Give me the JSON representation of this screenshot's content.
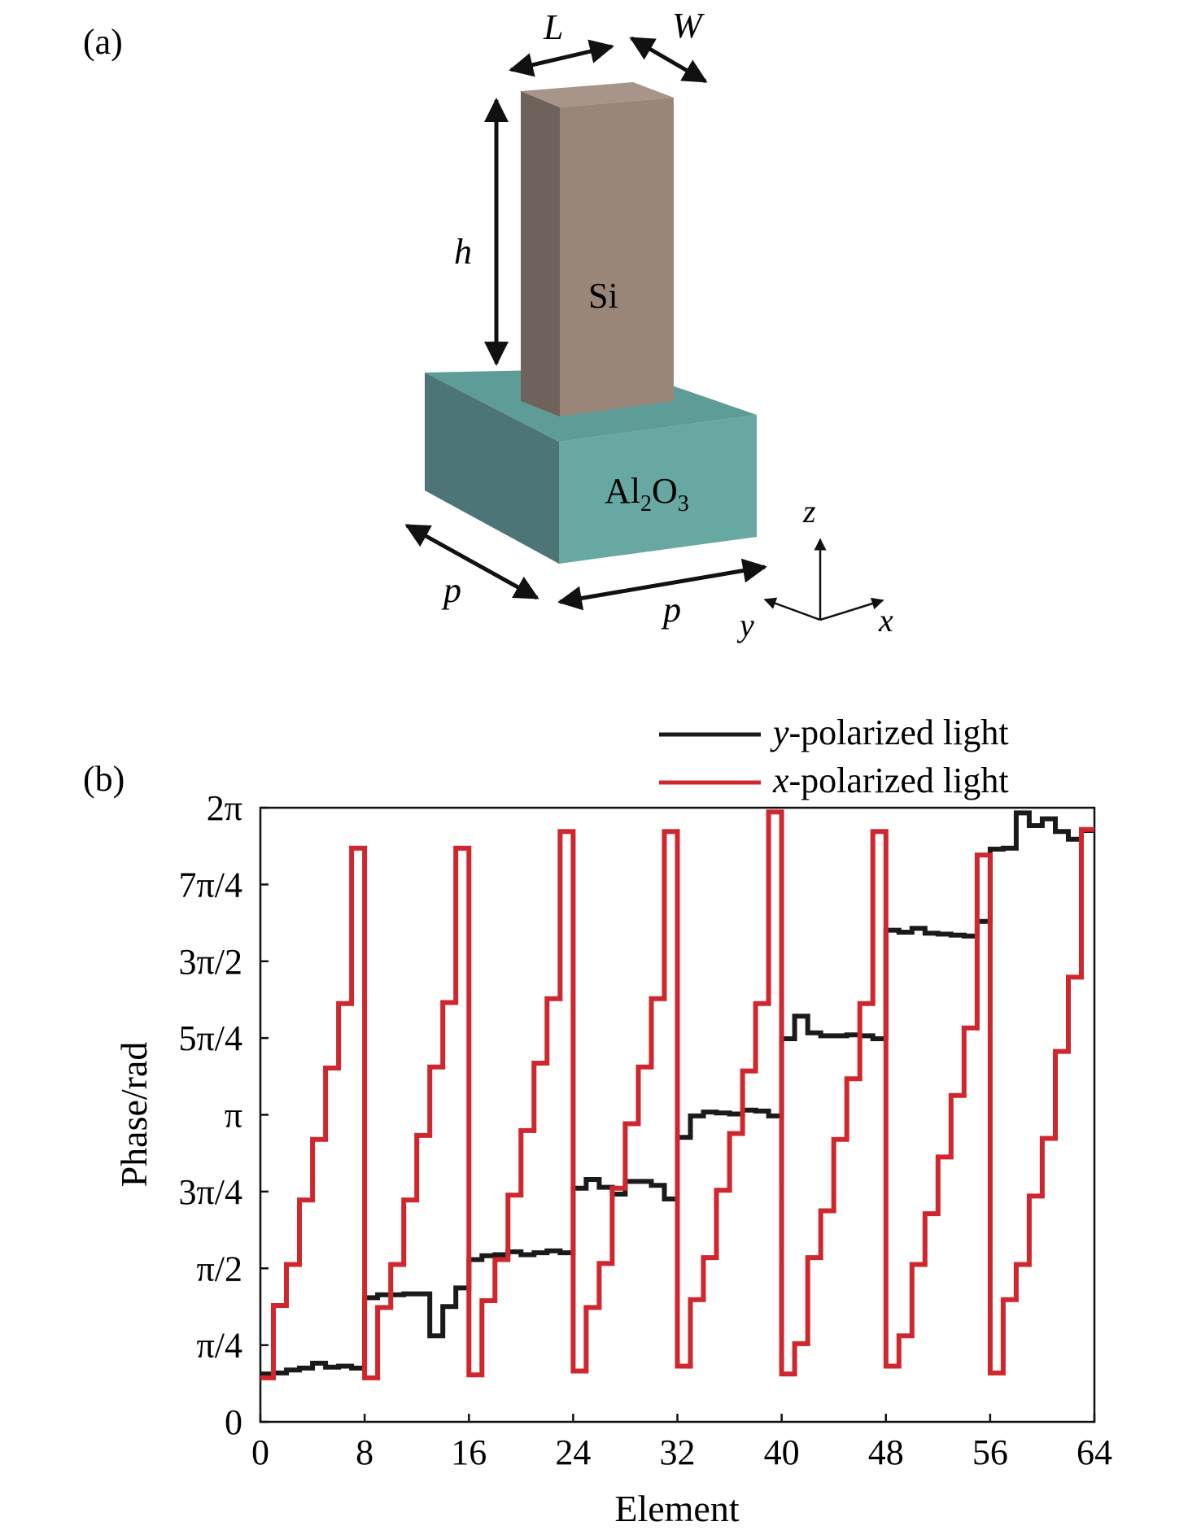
{
  "panel_a": {
    "label": "(a)",
    "dim_L": "L",
    "dim_W": "W",
    "dim_h": "h",
    "dim_p1": "p",
    "dim_p2": "p",
    "pillar_material": "Si",
    "substrate_material_base1": "Al",
    "substrate_material_sub1": "2",
    "substrate_material_base2": "O",
    "substrate_material_sub2": "3",
    "axis_z": "z",
    "axis_y": "y",
    "axis_x": "x",
    "colors": {
      "pillar_front": "#9a8679",
      "pillar_side": "#6e625b",
      "pillar_top": "#a8958a",
      "substrate_front": "#67a9a2",
      "substrate_side": "#4d7578",
      "substrate_top": "#5e9c98"
    }
  },
  "panel_b": {
    "label": "(b)"
  },
  "chart_data": {
    "type": "line",
    "xlabel": "Element",
    "ylabel": "Phase/rad",
    "xlim": [
      0,
      64
    ],
    "ylim": [
      0,
      6.2832
    ],
    "xticks": [
      0,
      8,
      16,
      24,
      32,
      40,
      48,
      56,
      64
    ],
    "xtick_labels": [
      "0",
      "8",
      "16",
      "24",
      "32",
      "40",
      "48",
      "56",
      "64"
    ],
    "yticks": [
      0,
      0.7854,
      1.5708,
      2.3562,
      3.1416,
      3.927,
      4.7124,
      5.4978,
      6.2832
    ],
    "ytick_labels": [
      "0",
      "π/4",
      "π/2",
      "3π/4",
      "π",
      "5π/4",
      "3π/2",
      "7π/4",
      "2π"
    ],
    "legend": {
      "position": "top-right",
      "entries": [
        {
          "italic": "y",
          "rest": "-polarized light",
          "color": "#1a1a1a"
        },
        {
          "italic": "x",
          "rest": "-polarized light",
          "color": "#d0262d"
        }
      ]
    },
    "series": [
      {
        "name": "y-polarized light",
        "color": "#1a1a1a",
        "points": [
          [
            1,
            0.49
          ],
          [
            2,
            0.5
          ],
          [
            3,
            0.53
          ],
          [
            4,
            0.55
          ],
          [
            5,
            0.6
          ],
          [
            6,
            0.56
          ],
          [
            7,
            0.57
          ],
          [
            8,
            0.55
          ],
          [
            9,
            1.27
          ],
          [
            10,
            1.3
          ],
          [
            11,
            1.3
          ],
          [
            12,
            1.31
          ],
          [
            13,
            1.31
          ],
          [
            14,
            0.88
          ],
          [
            15,
            1.18
          ],
          [
            16,
            1.37
          ],
          [
            17,
            1.66
          ],
          [
            18,
            1.7
          ],
          [
            19,
            1.71
          ],
          [
            20,
            1.74
          ],
          [
            21,
            1.71
          ],
          [
            22,
            1.73
          ],
          [
            23,
            1.75
          ],
          [
            24,
            1.73
          ],
          [
            25,
            2.39
          ],
          [
            26,
            2.48
          ],
          [
            27,
            2.4
          ],
          [
            28,
            2.33
          ],
          [
            29,
            2.46
          ],
          [
            30,
            2.46
          ],
          [
            31,
            2.42
          ],
          [
            32,
            2.28
          ],
          [
            33,
            2.91
          ],
          [
            34,
            3.13
          ],
          [
            35,
            3.17
          ],
          [
            36,
            3.16
          ],
          [
            37,
            3.15
          ],
          [
            38,
            3.19
          ],
          [
            39,
            3.18
          ],
          [
            40,
            3.13
          ],
          [
            41,
            3.92
          ],
          [
            42,
            4.15
          ],
          [
            43,
            3.98
          ],
          [
            44,
            3.95
          ],
          [
            45,
            3.95
          ],
          [
            46,
            3.96
          ],
          [
            47,
            3.95
          ],
          [
            48,
            3.92
          ],
          [
            49,
            5.03
          ],
          [
            50,
            5.01
          ],
          [
            51,
            5.05
          ],
          [
            52,
            5.0
          ],
          [
            53,
            4.99
          ],
          [
            54,
            4.98
          ],
          [
            55,
            4.97
          ],
          [
            56,
            5.12
          ],
          [
            57,
            5.86
          ],
          [
            58,
            5.87
          ],
          [
            59,
            6.23
          ],
          [
            60,
            6.1
          ],
          [
            61,
            6.17
          ],
          [
            62,
            6.04
          ],
          [
            63,
            5.96
          ],
          [
            64,
            6.05
          ]
        ]
      },
      {
        "name": "x-polarized light",
        "color": "#d0262d",
        "points": [
          [
            1,
            0.45
          ],
          [
            2,
            1.19
          ],
          [
            3,
            1.61
          ],
          [
            4,
            2.27
          ],
          [
            5,
            2.89
          ],
          [
            6,
            3.62
          ],
          [
            7,
            4.28
          ],
          [
            8,
            5.87
          ],
          [
            9,
            0.45
          ],
          [
            10,
            1.17
          ],
          [
            11,
            1.61
          ],
          [
            12,
            2.27
          ],
          [
            13,
            2.93
          ],
          [
            14,
            3.63
          ],
          [
            15,
            4.29
          ],
          [
            16,
            5.87
          ],
          [
            17,
            0.48
          ],
          [
            18,
            1.24
          ],
          [
            19,
            1.66
          ],
          [
            20,
            2.32
          ],
          [
            21,
            2.98
          ],
          [
            22,
            3.67
          ],
          [
            23,
            4.33
          ],
          [
            24,
            6.04
          ],
          [
            25,
            0.52
          ],
          [
            26,
            1.17
          ],
          [
            27,
            1.62
          ],
          [
            28,
            2.39
          ],
          [
            29,
            3.05
          ],
          [
            30,
            3.63
          ],
          [
            31,
            4.33
          ],
          [
            32,
            6.04
          ],
          [
            33,
            0.57
          ],
          [
            34,
            1.25
          ],
          [
            35,
            1.68
          ],
          [
            36,
            2.37
          ],
          [
            37,
            2.95
          ],
          [
            38,
            3.59
          ],
          [
            39,
            4.28
          ],
          [
            40,
            6.24
          ],
          [
            41,
            0.49
          ],
          [
            42,
            0.8
          ],
          [
            43,
            1.68
          ],
          [
            44,
            2.16
          ],
          [
            45,
            2.89
          ],
          [
            46,
            3.51
          ],
          [
            47,
            4.28
          ],
          [
            48,
            6.04
          ],
          [
            49,
            0.57
          ],
          [
            50,
            0.88
          ],
          [
            51,
            1.61
          ],
          [
            52,
            2.13
          ],
          [
            53,
            2.71
          ],
          [
            54,
            3.34
          ],
          [
            55,
            4.03
          ],
          [
            56,
            5.8
          ],
          [
            57,
            0.5
          ],
          [
            58,
            1.25
          ],
          [
            59,
            1.61
          ],
          [
            60,
            2.31
          ],
          [
            61,
            2.9
          ],
          [
            62,
            3.79
          ],
          [
            63,
            4.55
          ],
          [
            64,
            6.06
          ]
        ]
      }
    ]
  }
}
